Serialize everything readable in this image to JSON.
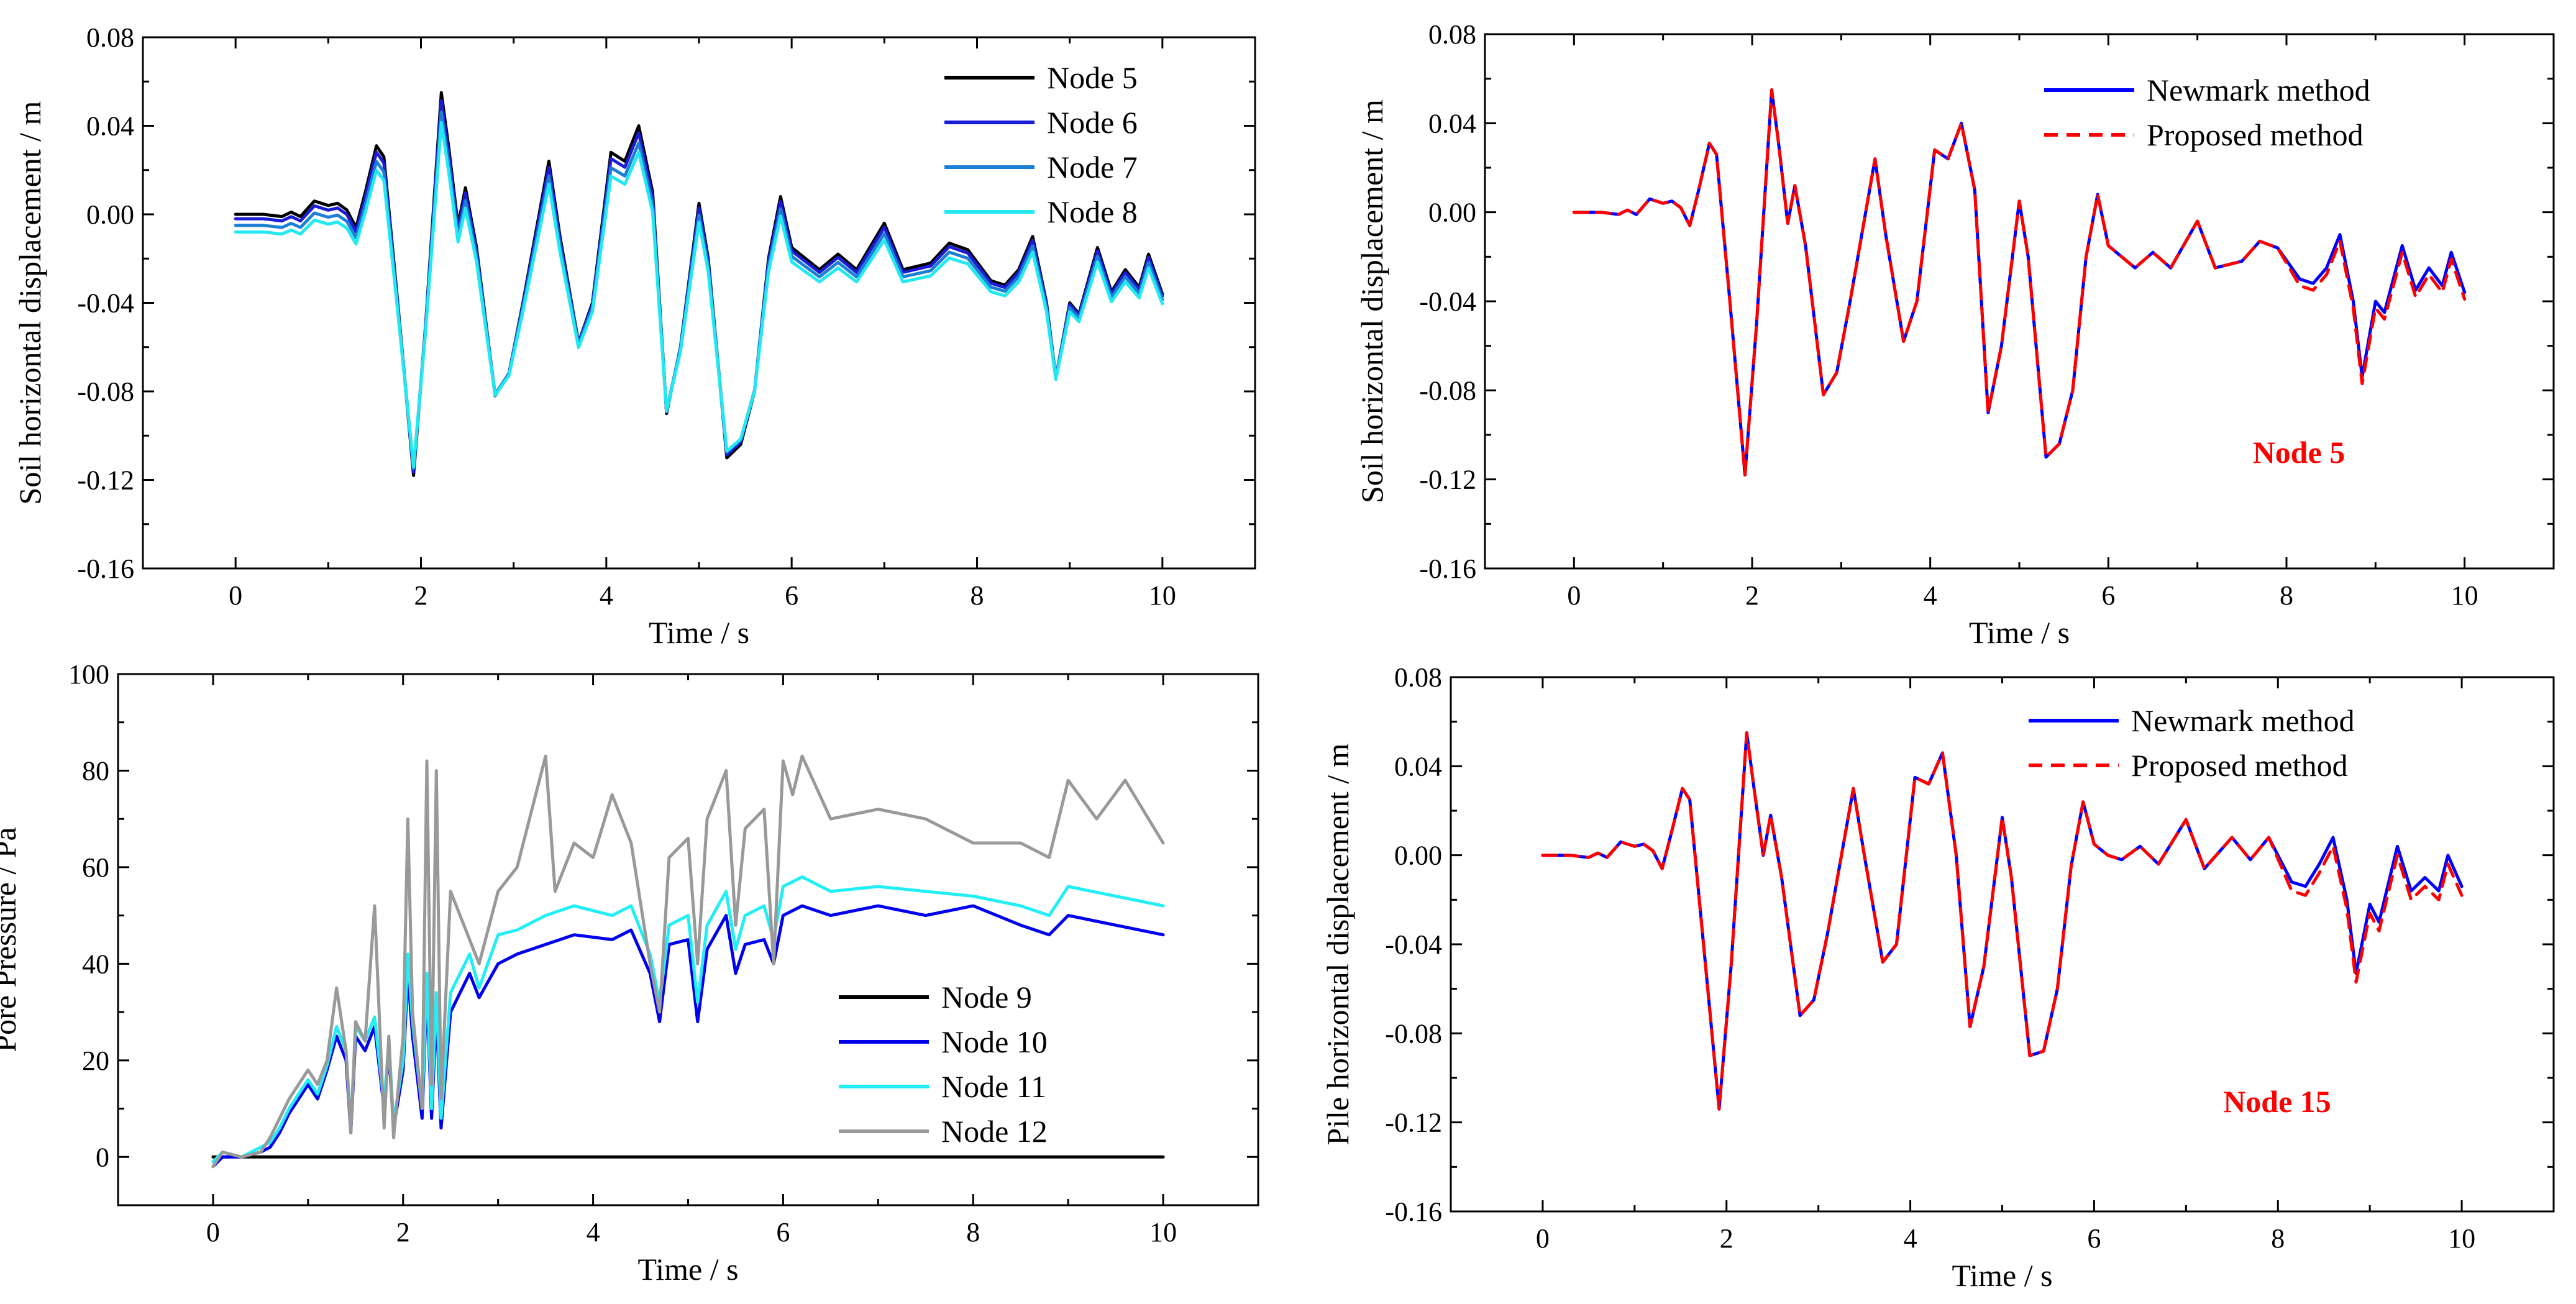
{
  "chart_data": [
    {
      "id": "a",
      "type": "line",
      "xlabel": "Time / s",
      "ylabel": "Soil horizontal displacement / m",
      "xlim": [
        -1,
        11
      ],
      "ylim": [
        -0.16,
        0.08
      ],
      "xticks": [
        "0",
        "2",
        "4",
        "6",
        "8",
        "10"
      ],
      "xtick_values": [
        0,
        2,
        4,
        6,
        8,
        10
      ],
      "yticks": [
        "-0.16",
        "-0.12",
        "-0.08",
        "-0.04",
        "0.00",
        "0.04",
        "0.08"
      ],
      "ytick_values": [
        -0.16,
        -0.12,
        -0.08,
        -0.04,
        0.0,
        0.04,
        0.08
      ],
      "legend_position": "top-right",
      "series": [
        {
          "name": "Node 5",
          "color": "#000000",
          "dash": "",
          "key": "disp",
          "scale": 1.0,
          "offset": 0.0
        },
        {
          "name": "Node 6",
          "color": "#1c1cd6",
          "dash": "",
          "key": "disp",
          "scale": 0.97,
          "offset": -0.002
        },
        {
          "name": "Node 7",
          "color": "#1c7fd6",
          "dash": "",
          "key": "disp",
          "scale": 0.93,
          "offset": -0.005
        },
        {
          "name": "Node 8",
          "color": "#22e8f0",
          "dash": "",
          "key": "disp",
          "scale": 0.9,
          "offset": -0.008
        }
      ]
    },
    {
      "id": "b",
      "type": "line",
      "xlabel": "Time / s",
      "ylabel": "Soil horizontal displacement / m",
      "xlim": [
        -1,
        11
      ],
      "ylim": [
        -0.16,
        0.08
      ],
      "xticks": [
        "0",
        "2",
        "4",
        "6",
        "8",
        "10"
      ],
      "xtick_values": [
        0,
        2,
        4,
        6,
        8,
        10
      ],
      "yticks": [
        "-0.16",
        "-0.12",
        "-0.08",
        "-0.04",
        "0.00",
        "0.04",
        "0.08"
      ],
      "ytick_values": [
        -0.16,
        -0.12,
        -0.08,
        -0.04,
        0.0,
        0.04,
        0.08
      ],
      "legend_position": "top-right",
      "annotation": {
        "text": "Node 5",
        "color": "#ff0000"
      },
      "series": [
        {
          "name": "Newmark method",
          "color": "#0000ff",
          "dash": "",
          "key": "disp",
          "scale": 1.0,
          "offset": 0.0
        },
        {
          "name": "Proposed method",
          "color": "#ff0000",
          "dash": "22,14",
          "key": "disp",
          "scale": 1.0,
          "offset": 0.0,
          "tail_shift": -0.003
        }
      ]
    },
    {
      "id": "c",
      "type": "line",
      "xlabel": "Time / s",
      "ylabel": "Pore Pressure / Pa",
      "xlim": [
        -1,
        11
      ],
      "ylim": [
        -10,
        100
      ],
      "xticks": [
        "0",
        "2",
        "4",
        "6",
        "8",
        "10"
      ],
      "xtick_values": [
        0,
        2,
        4,
        6,
        8,
        10
      ],
      "yticks": [
        "0",
        "20",
        "40",
        "60",
        "80",
        "100"
      ],
      "ytick_values": [
        0,
        20,
        40,
        60,
        80,
        100
      ],
      "legend_position": "bottom-right",
      "series": [
        {
          "name": "Node 9",
          "color": "#000000",
          "dash": "",
          "key": "pore9"
        },
        {
          "name": "Node 10",
          "color": "#0000ee",
          "dash": "",
          "key": "pore10"
        },
        {
          "name": "Node 11",
          "color": "#22eef5",
          "dash": "",
          "key": "pore11"
        },
        {
          "name": "Node 12",
          "color": "#999999",
          "dash": "",
          "key": "pore12"
        }
      ]
    },
    {
      "id": "d",
      "type": "line",
      "xlabel": "Time / s",
      "ylabel": "Pile horizontal displacement / m",
      "xlim": [
        -1,
        11
      ],
      "ylim": [
        -0.16,
        0.08
      ],
      "xticks": [
        "0",
        "2",
        "4",
        "6",
        "8",
        "10"
      ],
      "xtick_values": [
        0,
        2,
        4,
        6,
        8,
        10
      ],
      "yticks": [
        "-0.16",
        "-0.12",
        "-0.08",
        "-0.04",
        "0.00",
        "0.04",
        "0.08"
      ],
      "ytick_values": [
        -0.16,
        -0.12,
        -0.08,
        -0.04,
        0.0,
        0.04,
        0.08
      ],
      "legend_position": "top-right",
      "annotation": {
        "text": "Node 15",
        "color": "#ff0000"
      },
      "series": [
        {
          "name": "Newmark method",
          "color": "#0000ff",
          "dash": "",
          "key": "pile",
          "scale": 1.0,
          "offset": 0.0
        },
        {
          "name": "Proposed method",
          "color": "#ff0000",
          "dash": "22,14",
          "key": "pile",
          "scale": 1.0,
          "offset": 0.0,
          "tail_shift": -0.004
        }
      ]
    }
  ],
  "base_curves": {
    "disp": [
      [
        0,
        0
      ],
      [
        0.3,
        0.0
      ],
      [
        0.5,
        -0.001
      ],
      [
        0.6,
        0.001
      ],
      [
        0.7,
        -0.001
      ],
      [
        0.85,
        0.006
      ],
      [
        1.0,
        0.004
      ],
      [
        1.1,
        0.005
      ],
      [
        1.2,
        0.002
      ],
      [
        1.3,
        -0.006
      ],
      [
        1.4,
        0.01
      ],
      [
        1.52,
        0.031
      ],
      [
        1.6,
        0.026
      ],
      [
        1.75,
        -0.04
      ],
      [
        1.92,
        -0.118
      ],
      [
        2.05,
        -0.05
      ],
      [
        2.22,
        0.055
      ],
      [
        2.3,
        0.03
      ],
      [
        2.4,
        -0.005
      ],
      [
        2.48,
        0.012
      ],
      [
        2.6,
        -0.015
      ],
      [
        2.8,
        -0.082
      ],
      [
        2.95,
        -0.072
      ],
      [
        3.1,
        -0.04
      ],
      [
        3.38,
        0.024
      ],
      [
        3.5,
        -0.01
      ],
      [
        3.7,
        -0.058
      ],
      [
        3.85,
        -0.04
      ],
      [
        4.05,
        0.028
      ],
      [
        4.2,
        0.024
      ],
      [
        4.35,
        0.04
      ],
      [
        4.5,
        0.01
      ],
      [
        4.65,
        -0.09
      ],
      [
        4.8,
        -0.06
      ],
      [
        5.0,
        0.005
      ],
      [
        5.1,
        -0.02
      ],
      [
        5.3,
        -0.11
      ],
      [
        5.45,
        -0.104
      ],
      [
        5.6,
        -0.08
      ],
      [
        5.75,
        -0.02
      ],
      [
        5.88,
        0.008
      ],
      [
        6.0,
        -0.015
      ],
      [
        6.15,
        -0.02
      ],
      [
        6.3,
        -0.025
      ],
      [
        6.5,
        -0.018
      ],
      [
        6.7,
        -0.025
      ],
      [
        7.0,
        -0.004
      ],
      [
        7.2,
        -0.025
      ],
      [
        7.5,
        -0.022
      ],
      [
        7.7,
        -0.013
      ],
      [
        7.9,
        -0.016
      ],
      [
        8.15,
        -0.03
      ],
      [
        8.3,
        -0.032
      ],
      [
        8.45,
        -0.025
      ],
      [
        8.6,
        -0.01
      ],
      [
        8.75,
        -0.04
      ],
      [
        8.85,
        -0.074
      ],
      [
        9.0,
        -0.04
      ],
      [
        9.1,
        -0.045
      ],
      [
        9.3,
        -0.015
      ],
      [
        9.45,
        -0.035
      ],
      [
        9.6,
        -0.025
      ],
      [
        9.75,
        -0.033
      ],
      [
        9.85,
        -0.018
      ],
      [
        10.0,
        -0.036
      ]
    ],
    "pile": [
      [
        0,
        0
      ],
      [
        0.3,
        0.0
      ],
      [
        0.5,
        -0.001
      ],
      [
        0.6,
        0.001
      ],
      [
        0.7,
        -0.001
      ],
      [
        0.85,
        0.006
      ],
      [
        1.0,
        0.004
      ],
      [
        1.1,
        0.005
      ],
      [
        1.2,
        0.002
      ],
      [
        1.3,
        -0.006
      ],
      [
        1.4,
        0.01
      ],
      [
        1.52,
        0.03
      ],
      [
        1.6,
        0.025
      ],
      [
        1.75,
        -0.04
      ],
      [
        1.92,
        -0.114
      ],
      [
        2.05,
        -0.05
      ],
      [
        2.22,
        0.055
      ],
      [
        2.3,
        0.03
      ],
      [
        2.4,
        0.0
      ],
      [
        2.48,
        0.018
      ],
      [
        2.6,
        -0.01
      ],
      [
        2.8,
        -0.072
      ],
      [
        2.95,
        -0.065
      ],
      [
        3.1,
        -0.035
      ],
      [
        3.38,
        0.03
      ],
      [
        3.5,
        0.0
      ],
      [
        3.7,
        -0.048
      ],
      [
        3.85,
        -0.04
      ],
      [
        4.05,
        0.035
      ],
      [
        4.2,
        0.032
      ],
      [
        4.35,
        0.046
      ],
      [
        4.5,
        0.0
      ],
      [
        4.65,
        -0.077
      ],
      [
        4.8,
        -0.05
      ],
      [
        5.0,
        0.017
      ],
      [
        5.1,
        -0.01
      ],
      [
        5.3,
        -0.09
      ],
      [
        5.45,
        -0.088
      ],
      [
        5.6,
        -0.06
      ],
      [
        5.75,
        -0.005
      ],
      [
        5.88,
        0.024
      ],
      [
        6.0,
        0.005
      ],
      [
        6.15,
        0.0
      ],
      [
        6.3,
        -0.002
      ],
      [
        6.5,
        0.004
      ],
      [
        6.7,
        -0.004
      ],
      [
        7.0,
        0.016
      ],
      [
        7.2,
        -0.006
      ],
      [
        7.5,
        0.008
      ],
      [
        7.7,
        -0.002
      ],
      [
        7.9,
        0.008
      ],
      [
        8.15,
        -0.012
      ],
      [
        8.3,
        -0.014
      ],
      [
        8.45,
        -0.004
      ],
      [
        8.6,
        0.008
      ],
      [
        8.75,
        -0.02
      ],
      [
        8.85,
        -0.053
      ],
      [
        9.0,
        -0.022
      ],
      [
        9.1,
        -0.03
      ],
      [
        9.3,
        0.004
      ],
      [
        9.45,
        -0.016
      ],
      [
        9.6,
        -0.01
      ],
      [
        9.75,
        -0.016
      ],
      [
        9.85,
        0.0
      ],
      [
        10.0,
        -0.014
      ]
    ],
    "pore9": [
      [
        0,
        0
      ],
      [
        10,
        0
      ]
    ],
    "pore10": [
      [
        0,
        -2
      ],
      [
        0.1,
        0
      ],
      [
        0.3,
        0
      ],
      [
        0.5,
        1
      ],
      [
        0.6,
        2
      ],
      [
        0.7,
        5
      ],
      [
        0.8,
        9
      ],
      [
        1.0,
        15
      ],
      [
        1.1,
        12
      ],
      [
        1.2,
        18
      ],
      [
        1.3,
        25
      ],
      [
        1.4,
        20
      ],
      [
        1.45,
        5
      ],
      [
        1.5,
        25
      ],
      [
        1.6,
        22
      ],
      [
        1.7,
        27
      ],
      [
        1.8,
        10
      ],
      [
        1.85,
        22
      ],
      [
        1.9,
        6
      ],
      [
        2.0,
        18
      ],
      [
        2.05,
        38
      ],
      [
        2.1,
        25
      ],
      [
        2.2,
        8
      ],
      [
        2.25,
        35
      ],
      [
        2.3,
        8
      ],
      [
        2.35,
        30
      ],
      [
        2.4,
        6
      ],
      [
        2.5,
        30
      ],
      [
        2.7,
        38
      ],
      [
        2.8,
        33
      ],
      [
        3.0,
        40
      ],
      [
        3.2,
        42
      ],
      [
        3.5,
        44
      ],
      [
        3.8,
        46
      ],
      [
        4.2,
        45
      ],
      [
        4.4,
        47
      ],
      [
        4.6,
        38
      ],
      [
        4.7,
        28
      ],
      [
        4.8,
        44
      ],
      [
        5.0,
        45
      ],
      [
        5.1,
        28
      ],
      [
        5.2,
        43
      ],
      [
        5.4,
        50
      ],
      [
        5.5,
        38
      ],
      [
        5.6,
        44
      ],
      [
        5.8,
        45
      ],
      [
        5.9,
        40
      ],
      [
        6.0,
        50
      ],
      [
        6.2,
        52
      ],
      [
        6.5,
        50
      ],
      [
        7.0,
        52
      ],
      [
        7.5,
        50
      ],
      [
        8.0,
        52
      ],
      [
        8.5,
        48
      ],
      [
        8.8,
        46
      ],
      [
        9.0,
        50
      ],
      [
        9.5,
        48
      ],
      [
        10.0,
        46
      ]
    ],
    "pore11": [
      [
        0,
        -1
      ],
      [
        0.1,
        1
      ],
      [
        0.3,
        0
      ],
      [
        0.5,
        2
      ],
      [
        0.6,
        3
      ],
      [
        0.7,
        6
      ],
      [
        0.8,
        10
      ],
      [
        1.0,
        16
      ],
      [
        1.1,
        13
      ],
      [
        1.2,
        19
      ],
      [
        1.3,
        27
      ],
      [
        1.4,
        22
      ],
      [
        1.45,
        6
      ],
      [
        1.5,
        27
      ],
      [
        1.6,
        24
      ],
      [
        1.7,
        29
      ],
      [
        1.8,
        11
      ],
      [
        1.85,
        24
      ],
      [
        1.9,
        7
      ],
      [
        2.0,
        20
      ],
      [
        2.05,
        42
      ],
      [
        2.1,
        28
      ],
      [
        2.2,
        10
      ],
      [
        2.25,
        38
      ],
      [
        2.3,
        10
      ],
      [
        2.35,
        34
      ],
      [
        2.4,
        8
      ],
      [
        2.5,
        34
      ],
      [
        2.7,
        42
      ],
      [
        2.8,
        35
      ],
      [
        3.0,
        46
      ],
      [
        3.2,
        47
      ],
      [
        3.5,
        50
      ],
      [
        3.8,
        52
      ],
      [
        4.2,
        50
      ],
      [
        4.4,
        52
      ],
      [
        4.6,
        42
      ],
      [
        4.7,
        32
      ],
      [
        4.8,
        48
      ],
      [
        5.0,
        50
      ],
      [
        5.1,
        32
      ],
      [
        5.2,
        48
      ],
      [
        5.4,
        55
      ],
      [
        5.5,
        43
      ],
      [
        5.6,
        50
      ],
      [
        5.8,
        52
      ],
      [
        5.9,
        45
      ],
      [
        6.0,
        56
      ],
      [
        6.2,
        58
      ],
      [
        6.5,
        55
      ],
      [
        7.0,
        56
      ],
      [
        7.5,
        55
      ],
      [
        8.0,
        54
      ],
      [
        8.5,
        52
      ],
      [
        8.8,
        50
      ],
      [
        9.0,
        56
      ],
      [
        9.5,
        54
      ],
      [
        10.0,
        52
      ]
    ],
    "pore12": [
      [
        0,
        -2
      ],
      [
        0.1,
        1
      ],
      [
        0.3,
        0
      ],
      [
        0.5,
        1
      ],
      [
        0.6,
        4
      ],
      [
        0.7,
        8
      ],
      [
        0.8,
        12
      ],
      [
        1.0,
        18
      ],
      [
        1.1,
        15
      ],
      [
        1.2,
        20
      ],
      [
        1.3,
        35
      ],
      [
        1.4,
        22
      ],
      [
        1.45,
        5
      ],
      [
        1.5,
        28
      ],
      [
        1.6,
        24
      ],
      [
        1.7,
        52
      ],
      [
        1.8,
        6
      ],
      [
        1.85,
        25
      ],
      [
        1.9,
        4
      ],
      [
        2.0,
        25
      ],
      [
        2.05,
        70
      ],
      [
        2.1,
        30
      ],
      [
        2.2,
        10
      ],
      [
        2.25,
        82
      ],
      [
        2.3,
        15
      ],
      [
        2.35,
        80
      ],
      [
        2.4,
        12
      ],
      [
        2.5,
        55
      ],
      [
        2.7,
        45
      ],
      [
        2.8,
        40
      ],
      [
        3.0,
        55
      ],
      [
        3.2,
        60
      ],
      [
        3.5,
        83
      ],
      [
        3.6,
        55
      ],
      [
        3.8,
        65
      ],
      [
        4.0,
        62
      ],
      [
        4.2,
        75
      ],
      [
        4.4,
        65
      ],
      [
        4.6,
        40
      ],
      [
        4.7,
        30
      ],
      [
        4.8,
        62
      ],
      [
        5.0,
        66
      ],
      [
        5.1,
        40
      ],
      [
        5.2,
        70
      ],
      [
        5.4,
        80
      ],
      [
        5.5,
        48
      ],
      [
        5.6,
        68
      ],
      [
        5.8,
        72
      ],
      [
        5.9,
        40
      ],
      [
        6.0,
        82
      ],
      [
        6.1,
        75
      ],
      [
        6.2,
        83
      ],
      [
        6.5,
        70
      ],
      [
        7.0,
        72
      ],
      [
        7.5,
        70
      ],
      [
        8.0,
        65
      ],
      [
        8.5,
        65
      ],
      [
        8.8,
        62
      ],
      [
        9.0,
        78
      ],
      [
        9.3,
        70
      ],
      [
        9.6,
        78
      ],
      [
        10.0,
        65
      ]
    ]
  }
}
